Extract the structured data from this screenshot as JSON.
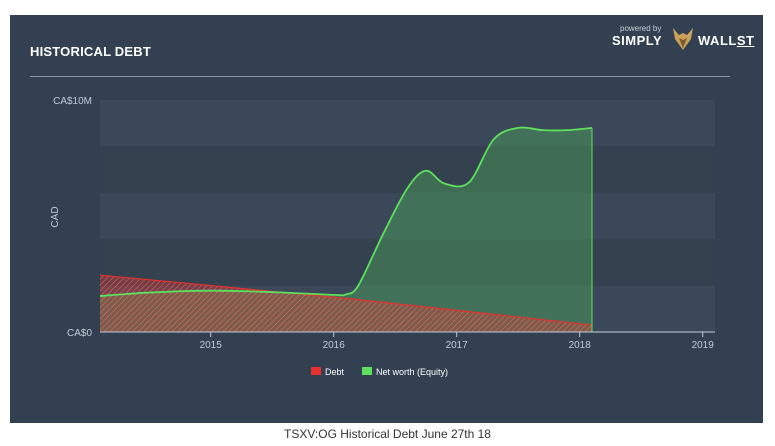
{
  "header": {
    "title": "HISTORICAL DEBT",
    "brand_powered": "powered by",
    "brand_simply": "SIMPLY",
    "brand_wall": "WALL",
    "brand_st": "ST"
  },
  "caption": "TSXV:OG Historical Debt June 27th 18",
  "colors": {
    "background": "#324051",
    "debt": "#e8312f",
    "equity": "#5de05d",
    "axis": "#c2cbd5"
  },
  "chart_data": {
    "type": "area",
    "title": "HISTORICAL DEBT",
    "xlabel": "",
    "ylabel": "CAD",
    "xlim": [
      2014.1,
      2019.1
    ],
    "ylim": [
      0,
      10
    ],
    "x_ticks": [
      2015,
      2016,
      2017,
      2018,
      2019
    ],
    "x_tick_labels": [
      "2015",
      "2016",
      "2017",
      "2018",
      "2019"
    ],
    "y_tick_labels": [
      "CA$0",
      "CA$10M"
    ],
    "y_tick_values": [
      0,
      10
    ],
    "grid": true,
    "legend": "bottom-center",
    "series": [
      {
        "name": "Debt",
        "x": [
          2014.1,
          2016.1,
          2018.1
        ],
        "y": [
          2.45,
          1.45,
          0.3
        ]
      },
      {
        "name": "Net worth (Equity)",
        "x": [
          2014.1,
          2014.5,
          2015.0,
          2015.5,
          2016.0,
          2016.1,
          2016.2,
          2016.4,
          2016.6,
          2016.75,
          2016.9,
          2017.1,
          2017.3,
          2017.5,
          2017.7,
          2017.9,
          2018.1
        ],
        "y": [
          1.55,
          1.7,
          1.78,
          1.72,
          1.6,
          1.62,
          2.0,
          4.2,
          6.2,
          6.95,
          6.4,
          6.45,
          8.3,
          8.8,
          8.7,
          8.7,
          8.8
        ]
      }
    ]
  }
}
